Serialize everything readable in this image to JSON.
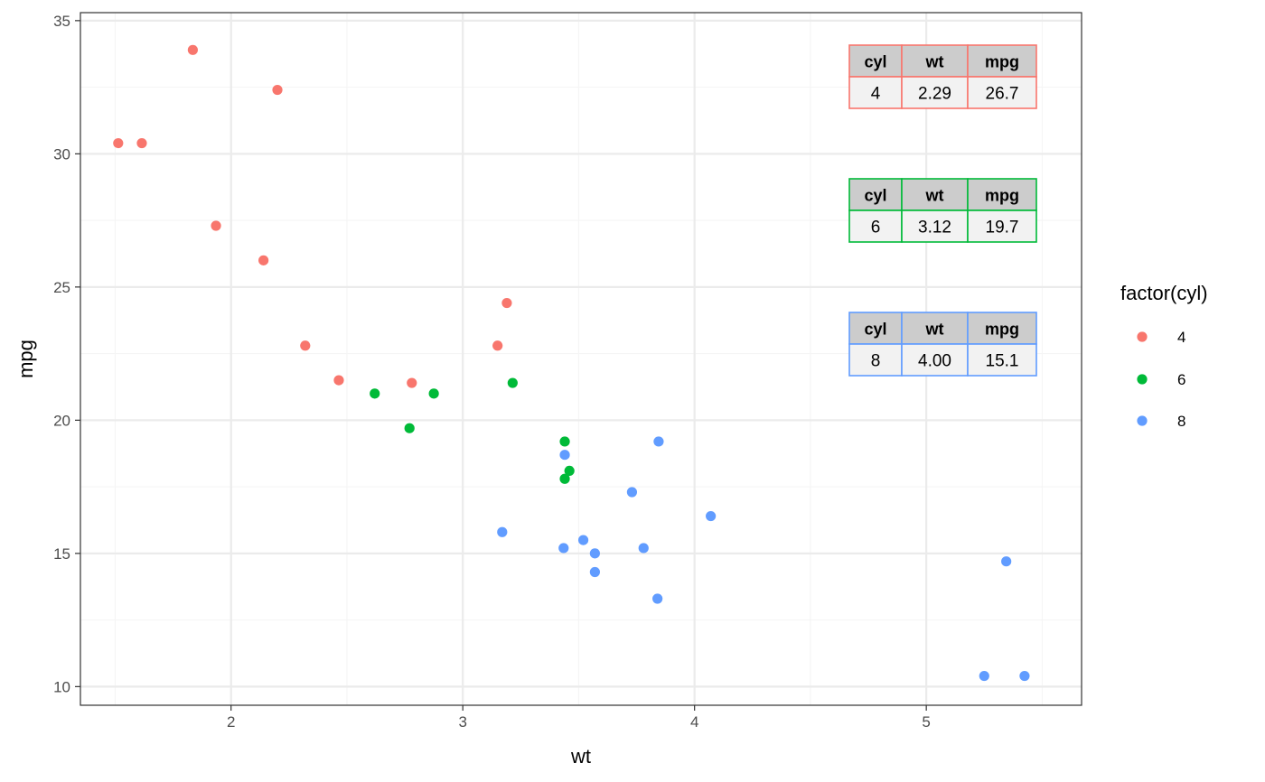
{
  "chart_data": {
    "type": "scatter",
    "xlabel": "wt",
    "ylabel": "mpg",
    "xlim": [
      1.35,
      5.67
    ],
    "ylim": [
      9.3,
      35.3
    ],
    "x_ticks": [
      2,
      3,
      4,
      5
    ],
    "x_tick_labels": [
      "2",
      "3",
      "4",
      "5"
    ],
    "x_minor": [
      1.5,
      2.5,
      3.5,
      4.5,
      5.5
    ],
    "y_ticks": [
      10,
      15,
      20,
      25,
      30,
      35
    ],
    "y_tick_labels": [
      "10",
      "15",
      "20",
      "25",
      "30",
      "35"
    ],
    "y_minor": [
      12.5,
      17.5,
      22.5,
      27.5,
      32.5
    ],
    "grid": true,
    "legend_title": "factor(cyl)",
    "legend_position": "right",
    "series": [
      {
        "name": "4",
        "color": "#F8766D",
        "points": [
          [
            1.513,
            30.4
          ],
          [
            1.615,
            30.4
          ],
          [
            1.835,
            33.9
          ],
          [
            1.935,
            27.3
          ],
          [
            2.14,
            26.0
          ],
          [
            2.2,
            32.4
          ],
          [
            2.32,
            22.8
          ],
          [
            2.465,
            21.5
          ],
          [
            2.78,
            21.4
          ],
          [
            3.15,
            22.8
          ],
          [
            3.19,
            24.4
          ]
        ]
      },
      {
        "name": "6",
        "color": "#00BA38",
        "points": [
          [
            2.62,
            21.0
          ],
          [
            2.77,
            19.7
          ],
          [
            2.875,
            21.0
          ],
          [
            3.215,
            21.4
          ],
          [
            3.44,
            19.2
          ],
          [
            3.44,
            17.8
          ],
          [
            3.46,
            18.1
          ]
        ]
      },
      {
        "name": "8",
        "color": "#619CFF",
        "points": [
          [
            3.17,
            15.8
          ],
          [
            3.435,
            15.2
          ],
          [
            3.44,
            18.7
          ],
          [
            3.52,
            15.5
          ],
          [
            3.57,
            15.0
          ],
          [
            3.57,
            14.3
          ],
          [
            3.73,
            17.3
          ],
          [
            3.78,
            15.2
          ],
          [
            3.84,
            13.3
          ],
          [
            3.845,
            19.2
          ],
          [
            4.07,
            16.4
          ],
          [
            5.25,
            10.4
          ],
          [
            5.345,
            14.7
          ],
          [
            5.424,
            10.4
          ]
        ]
      }
    ],
    "tables": [
      {
        "border": "#F8766D",
        "headers": [
          "cyl",
          "wt",
          "mpg"
        ],
        "row": [
          "4",
          "2.29",
          "26.7"
        ]
      },
      {
        "border": "#00BA38",
        "headers": [
          "cyl",
          "wt",
          "mpg"
        ],
        "row": [
          "6",
          "3.12",
          "19.7"
        ]
      },
      {
        "border": "#619CFF",
        "headers": [
          "cyl",
          "wt",
          "mpg"
        ],
        "row": [
          "8",
          "4.00",
          "15.1"
        ]
      }
    ]
  },
  "colors": {
    "panel_border": "#333333",
    "grid_major": "#ebebeb",
    "grid_minor": "#f5f5f5",
    "table_header_bg": "#cccccc",
    "table_cell_bg": "#f2f2f2"
  }
}
